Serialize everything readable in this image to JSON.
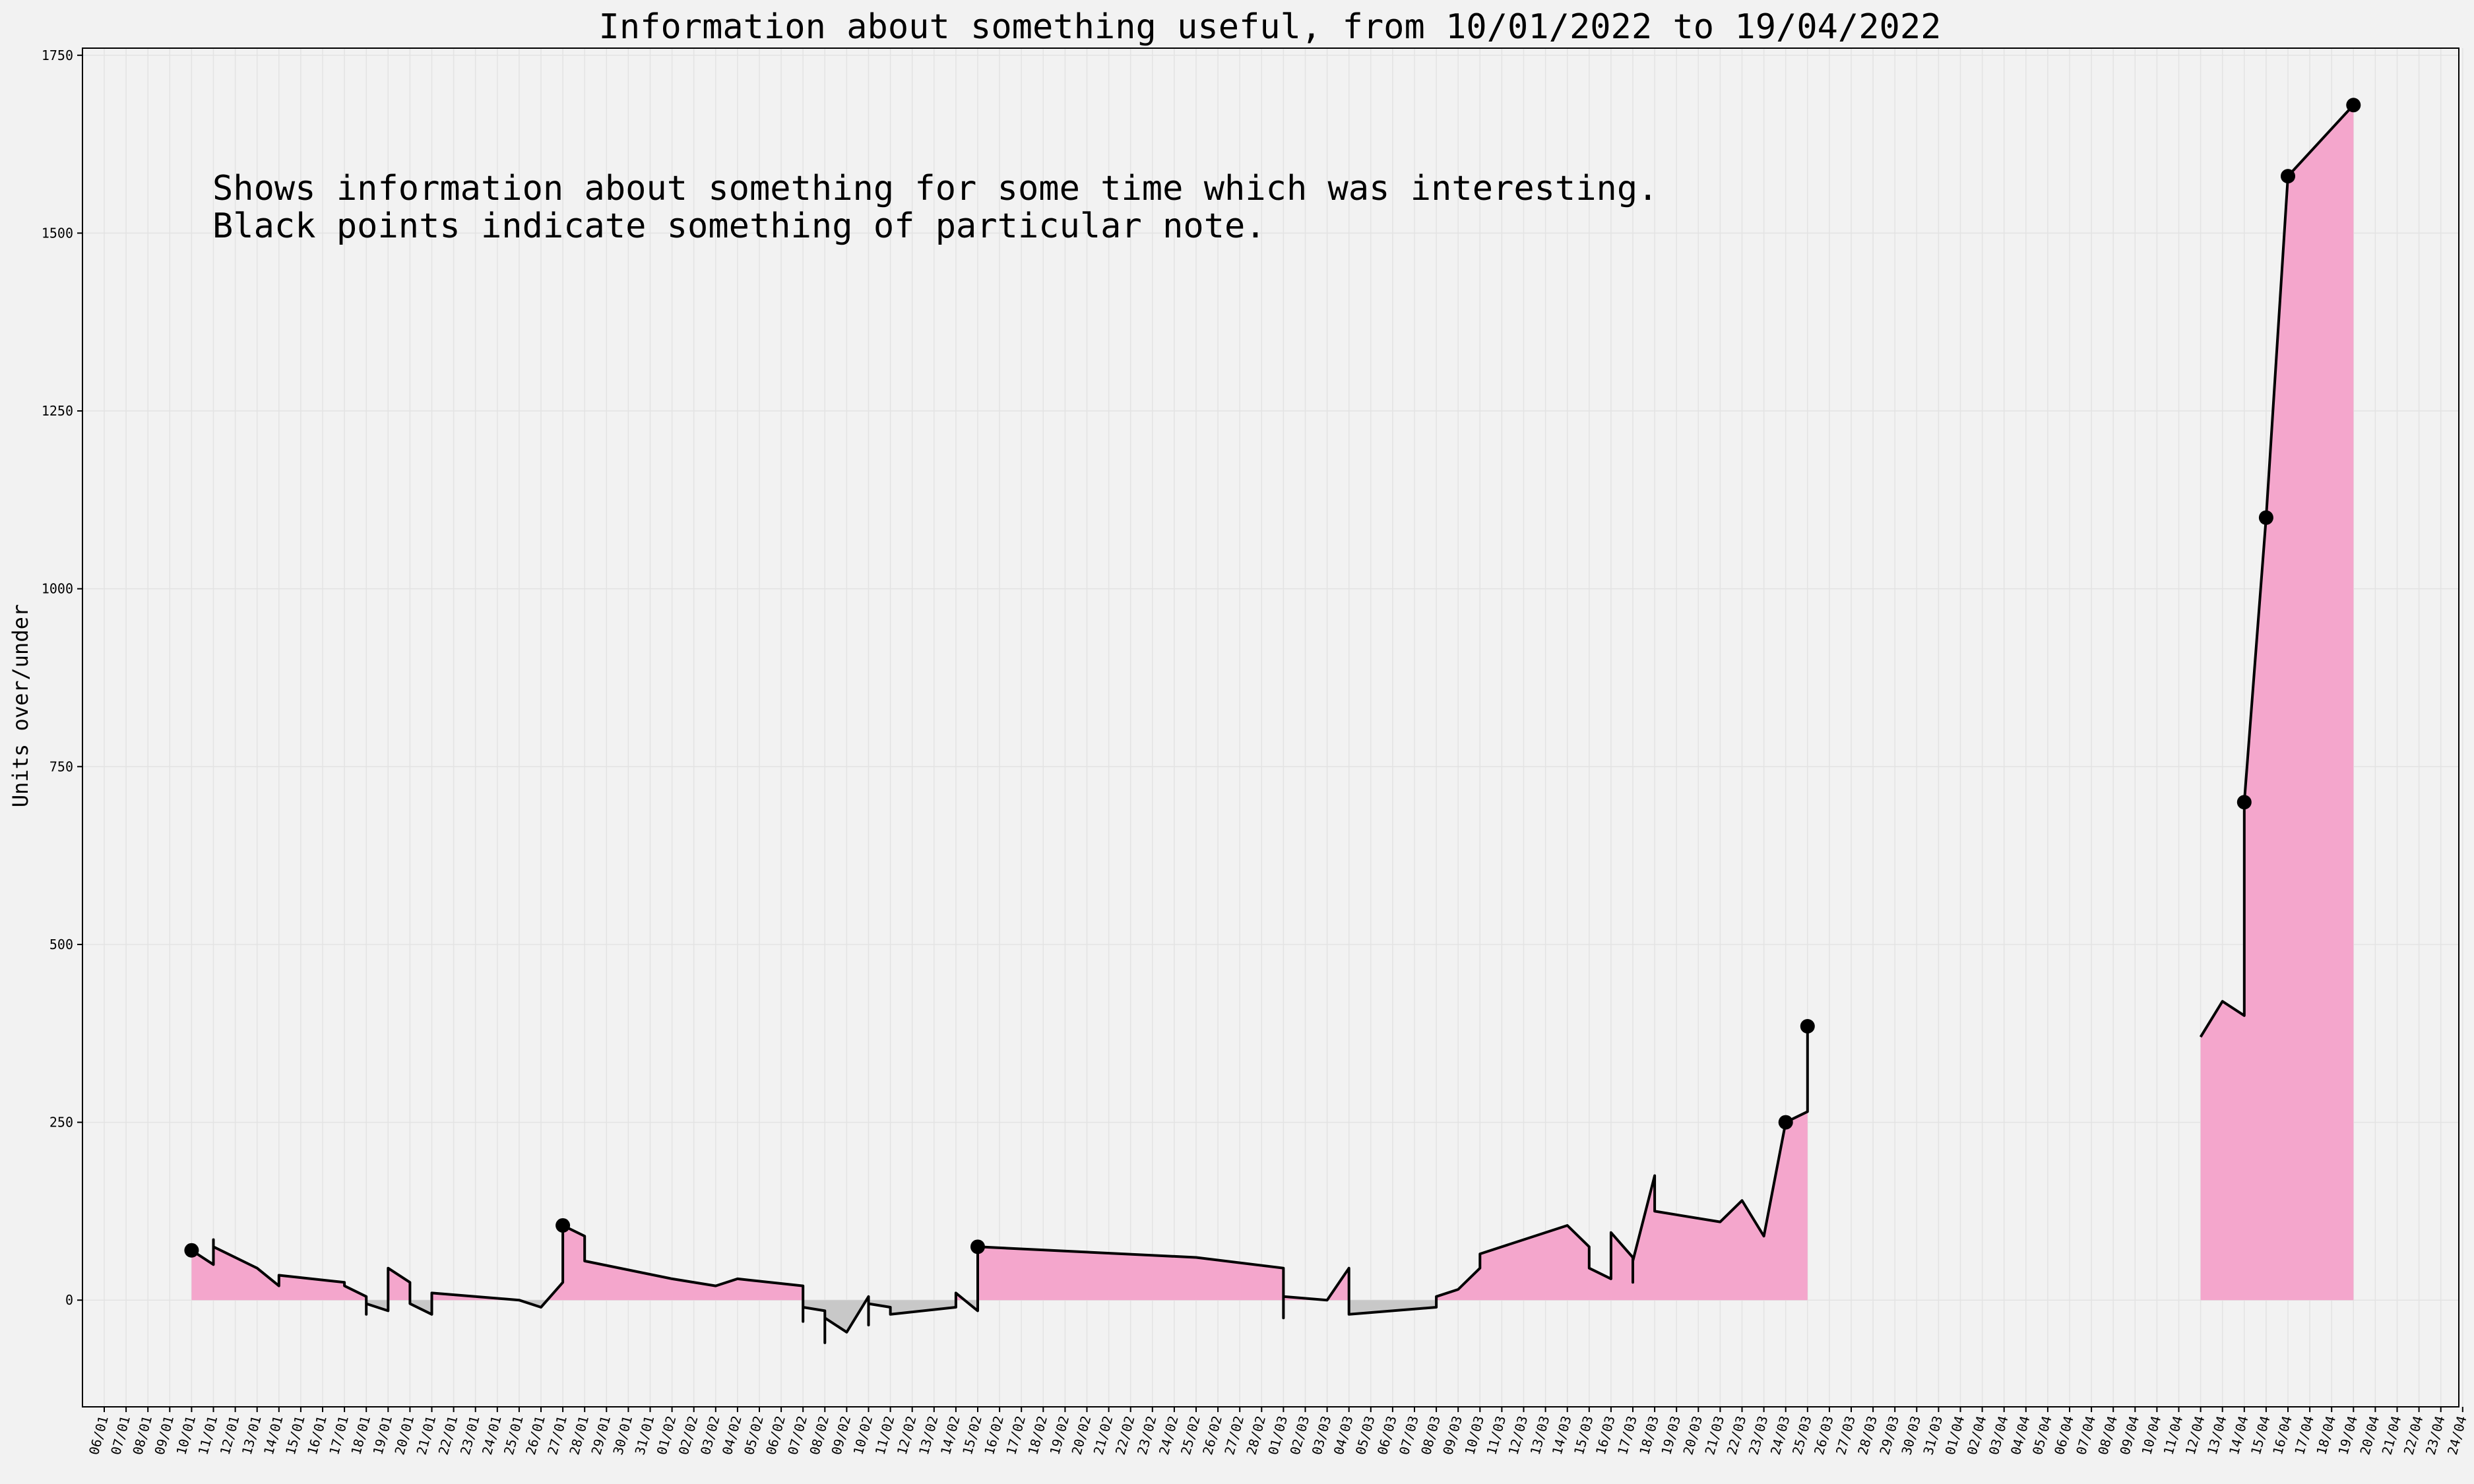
{
  "chart_data": {
    "type": "line",
    "title": "Information about something useful, from 10/01/2022 to 19/04/2022",
    "ylabel": "Units over/under",
    "xlabel": "",
    "annotation": [
      "Shows information about something for some time which was interesting.",
      "Black points indicate something of particular note."
    ],
    "ylim": [
      -150,
      1760
    ],
    "yticks": [
      0,
      250,
      500,
      750,
      1000,
      1250,
      1500,
      1750
    ],
    "grid": true,
    "legend": "none",
    "x_range_days": [
      "2022-01-06",
      "2022-04-24"
    ],
    "xtick_labels": [
      "06/01",
      "07/01",
      "08/01",
      "09/01",
      "10/01",
      "11/01",
      "12/01",
      "13/01",
      "14/01",
      "15/01",
      "16/01",
      "17/01",
      "18/01",
      "19/01",
      "20/01",
      "21/01",
      "22/01",
      "23/01",
      "24/01",
      "25/01",
      "26/01",
      "27/01",
      "28/01",
      "29/01",
      "30/01",
      "31/01",
      "01/02",
      "02/02",
      "03/02",
      "04/02",
      "05/02",
      "06/02",
      "07/02",
      "08/02",
      "09/02",
      "10/02",
      "11/02",
      "12/02",
      "13/02",
      "14/02",
      "15/02",
      "16/02",
      "17/02",
      "18/02",
      "19/02",
      "20/02",
      "21/02",
      "22/02",
      "23/02",
      "24/02",
      "25/02",
      "26/02",
      "27/02",
      "28/02",
      "01/03",
      "02/03",
      "03/03",
      "04/03",
      "05/03",
      "06/03",
      "07/03",
      "08/03",
      "09/03",
      "10/03",
      "11/03",
      "12/03",
      "13/03",
      "14/03",
      "15/03",
      "16/03",
      "17/03",
      "18/03",
      "19/03",
      "20/03",
      "21/03",
      "22/03",
      "23/03",
      "24/03",
      "25/03",
      "26/03",
      "27/03",
      "28/03",
      "29/03",
      "30/03",
      "31/03",
      "01/04",
      "02/04",
      "03/04",
      "04/04",
      "05/04",
      "06/04",
      "07/04",
      "08/04",
      "09/04",
      "10/04",
      "11/04",
      "12/04",
      "13/04",
      "14/04",
      "15/04",
      "16/04",
      "17/04",
      "18/04",
      "19/04",
      "20/04",
      "21/04",
      "22/04",
      "23/04",
      "24/04"
    ],
    "colors": {
      "positive_fill": "#f4a6cc",
      "negative_fill": "#c8c8c8",
      "line": "#000000",
      "background": "#f2f2f2"
    },
    "series": [
      {
        "segments": [
          [
            [
              "2022-01-10",
              70
            ],
            [
              "2022-01-11",
              50
            ],
            [
              "2022-01-11",
              85
            ],
            [
              "2022-01-11",
              75
            ],
            [
              "2022-01-13",
              45
            ],
            [
              "2022-01-14",
              20
            ],
            [
              "2022-01-14",
              35
            ],
            [
              "2022-01-17",
              25
            ],
            [
              "2022-01-17",
              20
            ],
            [
              "2022-01-18",
              5
            ],
            [
              "2022-01-18",
              -20
            ],
            [
              "2022-01-18",
              -5
            ],
            [
              "2022-01-19",
              -15
            ],
            [
              "2022-01-19",
              45
            ],
            [
              "2022-01-20",
              25
            ],
            [
              "2022-01-20",
              -5
            ],
            [
              "2022-01-21",
              -20
            ],
            [
              "2022-01-21",
              10
            ],
            [
              "2022-01-25",
              0
            ],
            [
              "2022-01-26",
              -10
            ],
            [
              "2022-01-27",
              25
            ],
            [
              "2022-01-27",
              105
            ],
            [
              "2022-01-28",
              90
            ],
            [
              "2022-01-28",
              55
            ],
            [
              "2022-02-01",
              30
            ],
            [
              "2022-02-03",
              20
            ],
            [
              "2022-02-04",
              30
            ],
            [
              "2022-02-07",
              20
            ],
            [
              "2022-02-07",
              -30
            ],
            [
              "2022-02-07",
              -10
            ],
            [
              "2022-02-08",
              -15
            ],
            [
              "2022-02-08",
              -60
            ],
            [
              "2022-02-08",
              -25
            ],
            [
              "2022-02-09",
              -45
            ],
            [
              "2022-02-10",
              5
            ],
            [
              "2022-02-10",
              -35
            ],
            [
              "2022-02-10",
              -5
            ],
            [
              "2022-02-11",
              -10
            ],
            [
              "2022-02-11",
              -20
            ],
            [
              "2022-02-14",
              -10
            ],
            [
              "2022-02-14",
              10
            ],
            [
              "2022-02-15",
              -15
            ],
            [
              "2022-02-15",
              75
            ],
            [
              "2022-02-25",
              60
            ],
            [
              "2022-03-01",
              45
            ],
            [
              "2022-03-01",
              -25
            ],
            [
              "2022-03-01",
              5
            ],
            [
              "2022-03-03",
              0
            ],
            [
              "2022-03-04",
              45
            ],
            [
              "2022-03-04",
              -20
            ],
            [
              "2022-03-08",
              -10
            ],
            [
              "2022-03-08",
              5
            ],
            [
              "2022-03-09",
              15
            ],
            [
              "2022-03-10",
              45
            ],
            [
              "2022-03-10",
              65
            ],
            [
              "2022-03-14",
              105
            ],
            [
              "2022-03-15",
              75
            ],
            [
              "2022-03-15",
              45
            ],
            [
              "2022-03-16",
              30
            ],
            [
              "2022-03-16",
              95
            ],
            [
              "2022-03-17",
              60
            ],
            [
              "2022-03-17",
              25
            ],
            [
              "2022-03-17",
              55
            ],
            [
              "2022-03-18",
              175
            ],
            [
              "2022-03-18",
              125
            ],
            [
              "2022-03-21",
              110
            ],
            [
              "2022-03-22",
              140
            ],
            [
              "2022-03-23",
              90
            ],
            [
              "2022-03-24",
              250
            ],
            [
              "2022-03-25",
              265
            ],
            [
              "2022-03-25",
              385
            ]
          ],
          [
            [
              "2022-04-12",
              370
            ],
            [
              "2022-04-13",
              420
            ],
            [
              "2022-04-14",
              400
            ],
            [
              "2022-04-14",
              700
            ],
            [
              "2022-04-15",
              1100
            ],
            [
              "2022-04-16",
              1580
            ],
            [
              "2022-04-19",
              1680
            ]
          ]
        ]
      }
    ],
    "highlight_points": [
      [
        "2022-01-10",
        70
      ],
      [
        "2022-01-27",
        105
      ],
      [
        "2022-02-15",
        75
      ],
      [
        "2022-03-24",
        250
      ],
      [
        "2022-03-25",
        385
      ],
      [
        "2022-04-14",
        700
      ],
      [
        "2022-04-15",
        1100
      ],
      [
        "2022-04-16",
        1580
      ],
      [
        "2022-04-19",
        1680
      ]
    ]
  }
}
